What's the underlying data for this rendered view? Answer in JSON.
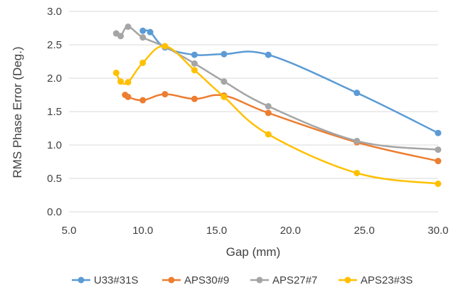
{
  "chart_data": {
    "type": "line",
    "title": "",
    "xlabel": "Gap (mm)",
    "ylabel": "RMS Phase Error (Deg.)",
    "xlim": [
      5.0,
      30.0
    ],
    "ylim": [
      0.0,
      3.0
    ],
    "xticks": [
      "5.0",
      "10.0",
      "15.0",
      "20.0",
      "25.0",
      "30.0"
    ],
    "yticks": [
      "0.0",
      "0.5",
      "1.0",
      "1.5",
      "2.0",
      "2.5",
      "3.0"
    ],
    "grid": "horizontal",
    "legend_position": "bottom",
    "series": [
      {
        "name": "U33#31S",
        "color": "#5b9bd5",
        "x": [
          10.0,
          10.5,
          11.5,
          13.5,
          15.5,
          18.5,
          24.5,
          30.0
        ],
        "y": [
          2.71,
          2.69,
          2.46,
          2.35,
          2.36,
          2.35,
          1.78,
          1.18
        ]
      },
      {
        "name": "APS30#9",
        "color": "#ed7d31",
        "x": [
          8.8,
          9.0,
          10.0,
          11.5,
          13.5,
          15.5,
          18.5,
          24.5,
          30.0
        ],
        "y": [
          1.75,
          1.72,
          1.67,
          1.76,
          1.69,
          1.74,
          1.48,
          1.04,
          0.76
        ]
      },
      {
        "name": "APS27#7",
        "color": "#a5a5a5",
        "x": [
          8.2,
          8.5,
          9.0,
          10.0,
          11.5,
          13.5,
          15.5,
          18.5,
          24.5,
          30.0
        ],
        "y": [
          2.67,
          2.63,
          2.77,
          2.61,
          2.47,
          2.22,
          1.95,
          1.58,
          1.06,
          0.93
        ]
      },
      {
        "name": "APS23#3S",
        "color": "#ffc000",
        "x": [
          8.2,
          8.5,
          9.0,
          10.0,
          11.5,
          13.5,
          15.5,
          18.5,
          24.5,
          30.0
        ],
        "y": [
          2.08,
          1.95,
          1.94,
          2.23,
          2.48,
          2.12,
          1.72,
          1.16,
          0.58,
          0.42
        ]
      }
    ]
  }
}
